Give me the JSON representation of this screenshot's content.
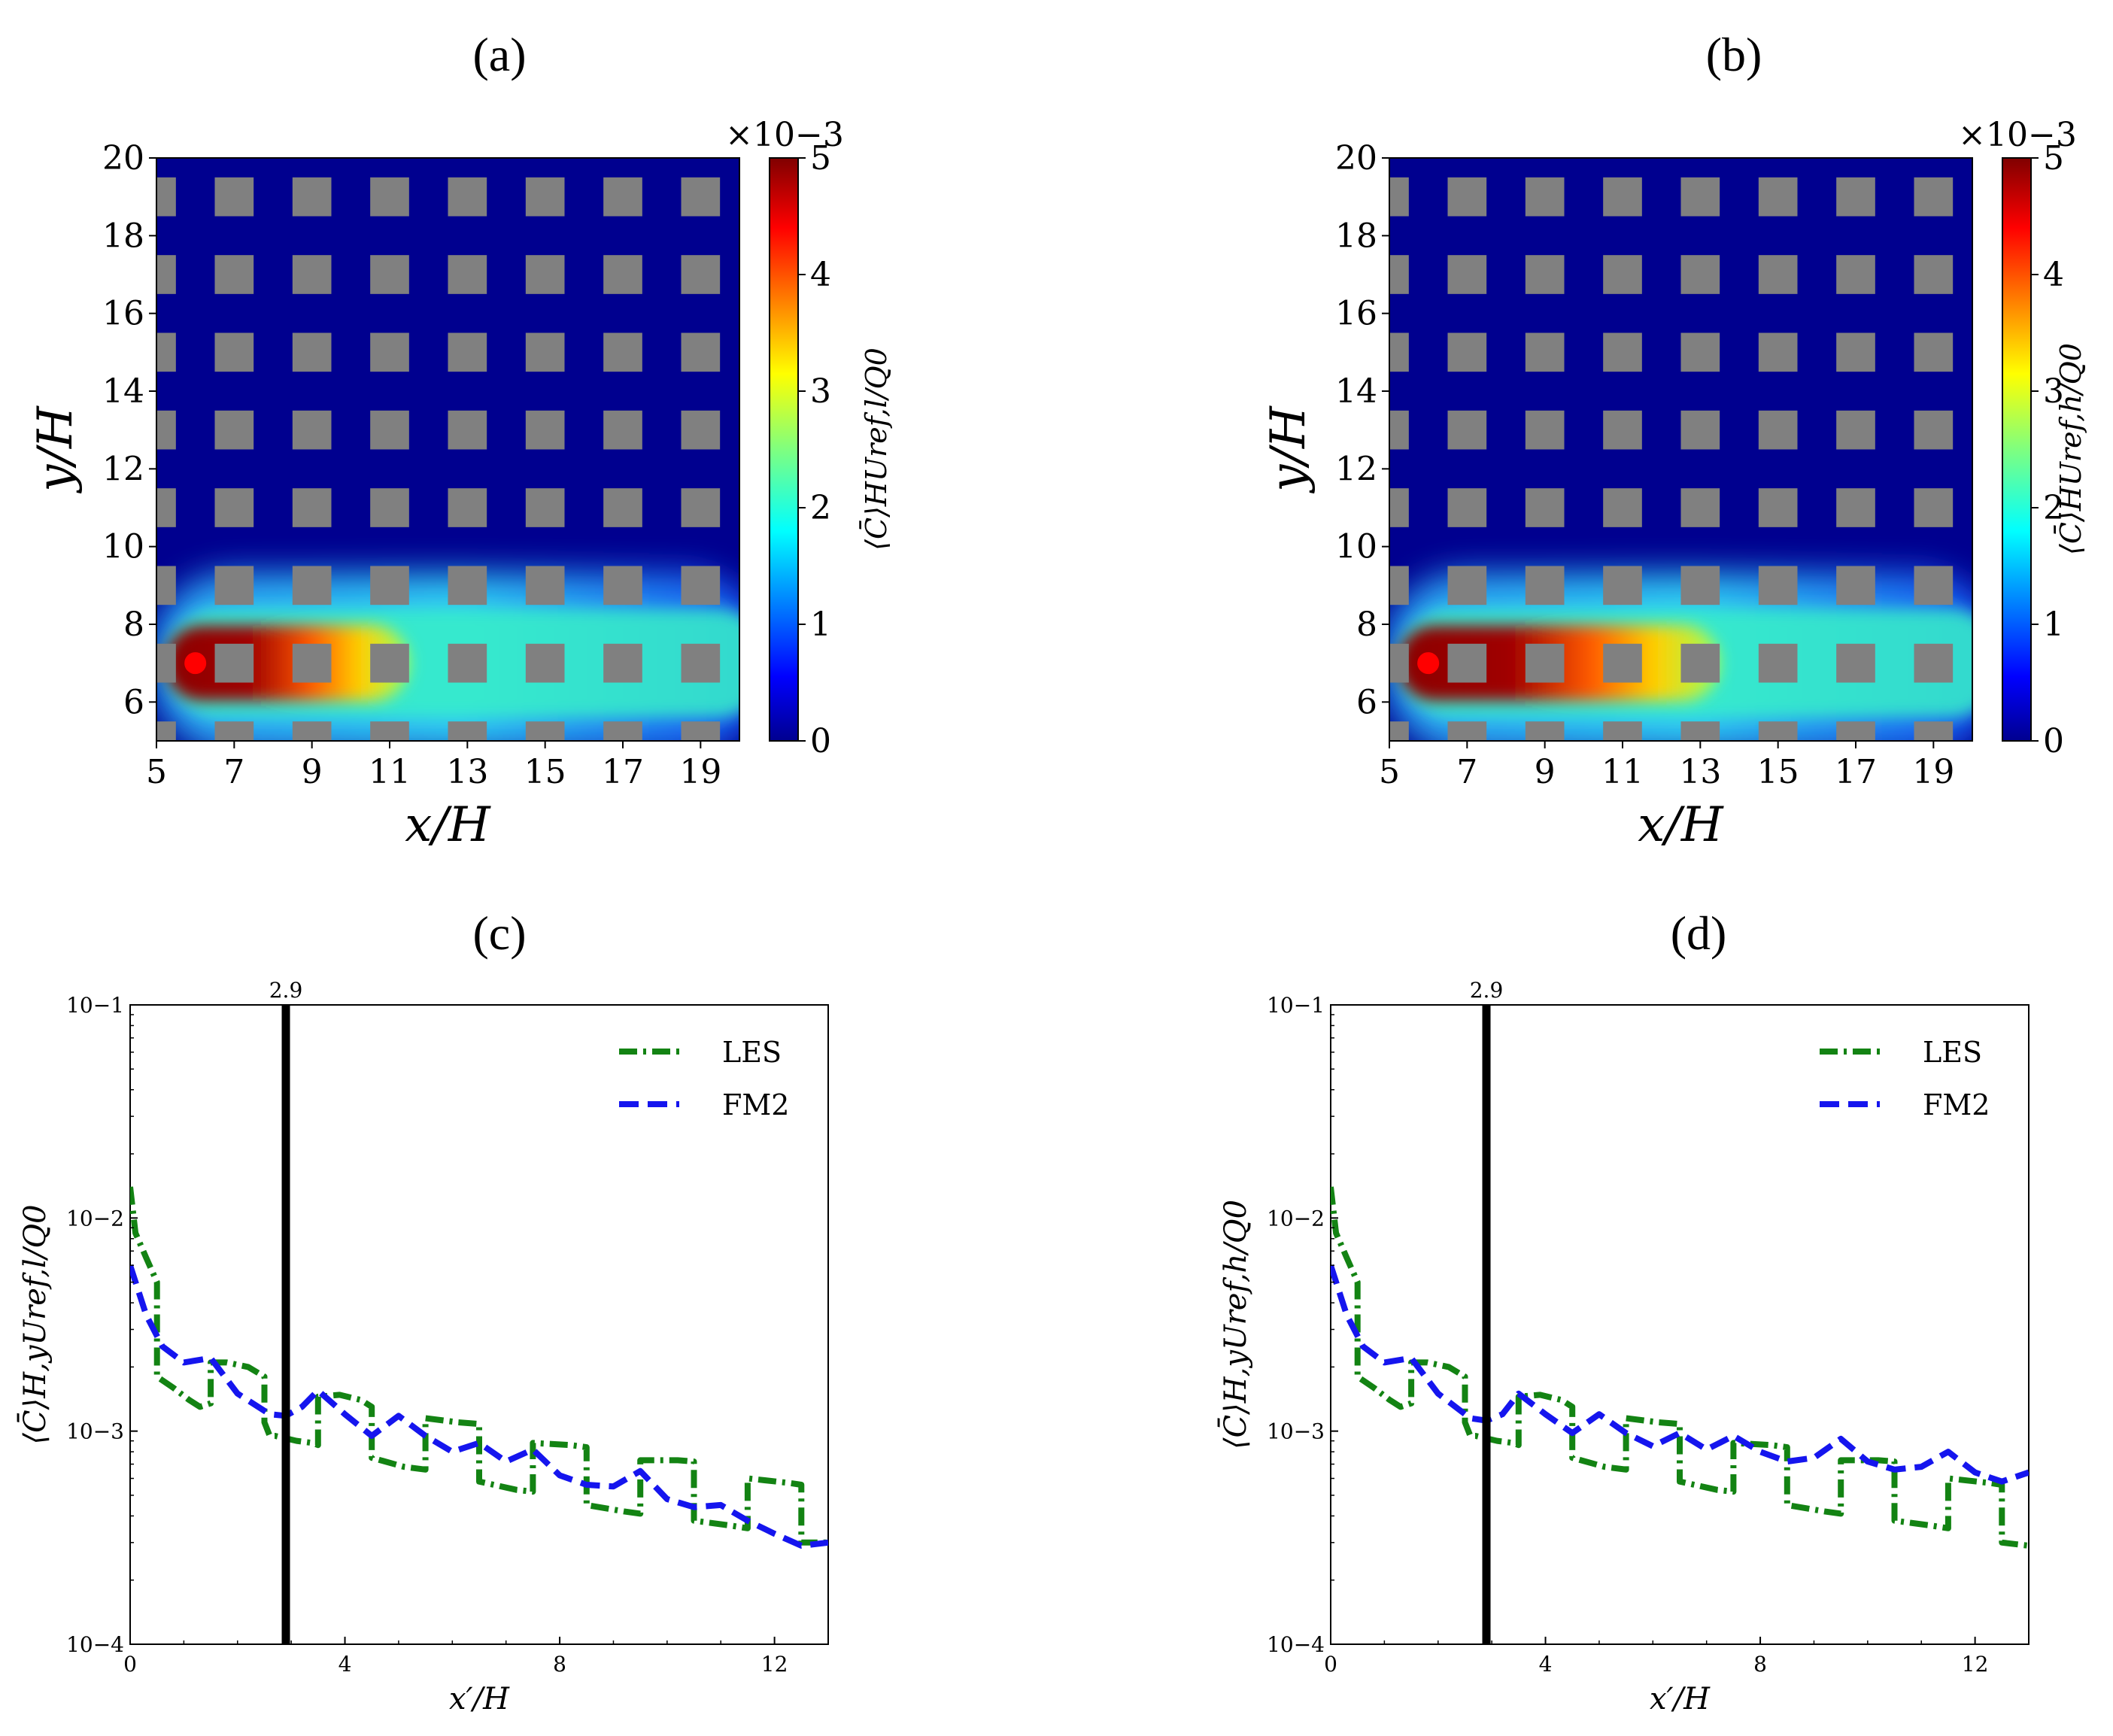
{
  "panels": [
    {
      "id": "a",
      "label": "(a)",
      "xlabel": "x/H",
      "ylabel": "y/H",
      "xticks": [
        "5",
        "7",
        "9",
        "11",
        "13",
        "15",
        "17",
        "19"
      ],
      "yticks": [
        "6",
        "8",
        "10",
        "12",
        "14",
        "16",
        "18",
        "20"
      ],
      "colorbar": {
        "label": "⟨C̄⟩HUref,l/Q0",
        "scale": "×10−3",
        "ticks": [
          "0",
          "1",
          "2",
          "3",
          "4",
          "5"
        ]
      },
      "plume_reach": 11.5
    },
    {
      "id": "b",
      "label": "(b)",
      "xlabel": "x/H",
      "ylabel": "y/H",
      "xticks": [
        "5",
        "7",
        "9",
        "11",
        "13",
        "15",
        "17",
        "19"
      ],
      "yticks": [
        "6",
        "8",
        "10",
        "12",
        "14",
        "16",
        "18",
        "20"
      ],
      "colorbar": {
        "label": "⟨C̄⟩HUref,h/Q0",
        "scale": "×10−3",
        "ticks": [
          "0",
          "1",
          "2",
          "3",
          "4",
          "5"
        ]
      },
      "plume_reach": 13.5
    },
    {
      "id": "c",
      "label": "(c)",
      "xlabel": "x′/H",
      "ylabel": "⟨C̄⟩H,yUref,l/Q0",
      "xticks": [
        "0",
        "4",
        "8",
        "12"
      ],
      "yticks": [
        "10−4",
        "10−3",
        "10−2",
        "10−1"
      ],
      "vline_label": "2.9",
      "legend": [
        "LES",
        "FM2"
      ]
    },
    {
      "id": "d",
      "label": "(d)",
      "xlabel": "x′/H",
      "ylabel": "⟨C̄⟩H,yUref,h/Q0",
      "xticks": [
        "0",
        "4",
        "8",
        "12"
      ],
      "yticks": [
        "10−4",
        "10−3",
        "10−2",
        "10−1"
      ],
      "vline_label": "2.9",
      "legend": [
        "LES",
        "FM2"
      ]
    }
  ],
  "colors": {
    "field_background": "#00008f",
    "obstacle": "#808080",
    "source": "#ff0000",
    "les": "#138313",
    "fm2": "#1515ee",
    "vline": "#000000"
  },
  "chart_data": [
    {
      "type": "heatmap",
      "panel": "a",
      "xlabel": "x/H",
      "ylabel": "y/H",
      "xlim": [
        5,
        20
      ],
      "ylim": [
        5,
        20
      ],
      "colorbar_range": [
        0,
        0.005
      ],
      "source": [
        6,
        7
      ],
      "obstacle_x": [
        5,
        7,
        9,
        11,
        13,
        15,
        17,
        19
      ],
      "obstacle_y": [
        5,
        7,
        9,
        11,
        13,
        15,
        17,
        19
      ]
    },
    {
      "type": "heatmap",
      "panel": "b",
      "xlabel": "x/H",
      "ylabel": "y/H",
      "xlim": [
        5,
        20
      ],
      "ylim": [
        5,
        20
      ],
      "colorbar_range": [
        0,
        0.005
      ],
      "source": [
        6,
        7
      ],
      "obstacle_x": [
        5,
        7,
        9,
        11,
        13,
        15,
        17,
        19
      ],
      "obstacle_y": [
        5,
        7,
        9,
        11,
        13,
        15,
        17,
        19
      ]
    },
    {
      "type": "line",
      "panel": "c",
      "xlabel": "x′/H",
      "ylabel": "⟨C̄⟩H,yUref,l/Q0",
      "xlim": [
        0,
        13
      ],
      "ylim": [
        0.0001,
        0.1
      ],
      "yscale": "log",
      "vline": 2.9,
      "series": [
        {
          "name": "LES",
          "x": [
            0,
            0.1,
            0.3,
            0.5,
            0.5,
            0.8,
            1.1,
            1.3,
            1.5,
            1.5,
            1.8,
            2.2,
            2.5,
            2.5,
            2.6,
            2.7,
            3.1,
            3.4,
            3.5,
            3.5,
            3.9,
            4.3,
            4.5,
            4.5,
            5.1,
            5.5,
            5.5,
            6.1,
            6.5,
            6.5,
            7.2,
            7.5,
            7.5,
            8.2,
            8.5,
            8.5,
            9.2,
            9.5,
            9.5,
            10.2,
            10.5,
            10.5,
            11.2,
            11.5,
            11.5,
            12.3,
            12.5,
            12.5,
            13
          ],
          "y": [
            0.014,
            0.0085,
            0.0065,
            0.005,
            0.0018,
            0.0016,
            0.0014,
            0.0013,
            0.00135,
            0.0021,
            0.0021,
            0.002,
            0.0018,
            0.0011,
            0.00095,
            0.00095,
            0.0009,
            0.00088,
            0.00086,
            0.00145,
            0.00148,
            0.0014,
            0.0013,
            0.00075,
            0.00068,
            0.00066,
            0.00115,
            0.0011,
            0.00108,
            0.00058,
            0.00053,
            0.00052,
            0.00088,
            0.00086,
            0.00084,
            0.00045,
            0.00042,
            0.00041,
            0.00073,
            0.00073,
            0.00072,
            0.00038,
            0.00036,
            0.00035,
            0.0006,
            0.00057,
            0.00056,
            0.0003,
            0.0003
          ]
        },
        {
          "name": "FM2",
          "x": [
            0,
            0.3,
            0.6,
            1,
            1.5,
            2,
            2.6,
            2.9,
            3.2,
            3.5,
            4,
            4.5,
            5,
            5.5,
            6,
            6.5,
            7,
            7.5,
            8,
            8.5,
            9,
            9.5,
            10,
            10.5,
            11,
            11.5,
            12,
            12.5,
            13
          ],
          "y": [
            0.006,
            0.0035,
            0.0025,
            0.0021,
            0.0022,
            0.0015,
            0.0012,
            0.00118,
            0.0013,
            0.00155,
            0.0012,
            0.00095,
            0.00118,
            0.00095,
            0.0008,
            0.00088,
            0.00072,
            0.00082,
            0.00062,
            0.00056,
            0.00055,
            0.00065,
            0.00048,
            0.00044,
            0.00045,
            0.00038,
            0.00033,
            0.00029,
            0.0003
          ]
        }
      ]
    },
    {
      "type": "line",
      "panel": "d",
      "xlabel": "x′/H",
      "ylabel": "⟨C̄⟩H,yUref,h/Q0",
      "xlim": [
        0,
        13
      ],
      "ylim": [
        0.0001,
        0.1
      ],
      "yscale": "log",
      "vline": 2.9,
      "series": [
        {
          "name": "LES",
          "x": [
            0,
            0.1,
            0.3,
            0.5,
            0.5,
            0.8,
            1.1,
            1.3,
            1.5,
            1.5,
            1.8,
            2.2,
            2.5,
            2.5,
            2.6,
            2.7,
            3.1,
            3.4,
            3.5,
            3.5,
            3.9,
            4.3,
            4.5,
            4.5,
            5.1,
            5.5,
            5.5,
            6.1,
            6.5,
            6.5,
            7.2,
            7.5,
            7.5,
            8.2,
            8.5,
            8.5,
            9.2,
            9.5,
            9.5,
            10.2,
            10.5,
            10.5,
            11.2,
            11.5,
            11.5,
            12.3,
            12.5,
            12.5,
            13
          ],
          "y": [
            0.014,
            0.0085,
            0.0065,
            0.005,
            0.0018,
            0.0016,
            0.0014,
            0.0013,
            0.00135,
            0.0021,
            0.0021,
            0.002,
            0.0018,
            0.0011,
            0.00095,
            0.00095,
            0.0009,
            0.00088,
            0.00086,
            0.00145,
            0.00148,
            0.0014,
            0.0013,
            0.00075,
            0.00068,
            0.00066,
            0.00115,
            0.0011,
            0.00108,
            0.00058,
            0.00053,
            0.00052,
            0.00088,
            0.00086,
            0.00084,
            0.00045,
            0.00042,
            0.00041,
            0.00073,
            0.00073,
            0.00072,
            0.00038,
            0.00036,
            0.00035,
            0.0006,
            0.00057,
            0.00056,
            0.0003,
            0.00029
          ]
        },
        {
          "name": "FM2",
          "x": [
            0,
            0.3,
            0.6,
            1,
            1.5,
            2,
            2.6,
            2.9,
            3.2,
            3.5,
            4,
            4.5,
            5,
            5.5,
            6,
            6.5,
            7,
            7.5,
            8,
            8.5,
            9,
            9.5,
            10,
            10.5,
            11,
            11.5,
            12,
            12.5,
            13
          ],
          "y": [
            0.006,
            0.0035,
            0.0025,
            0.0021,
            0.0022,
            0.0015,
            0.00115,
            0.00112,
            0.0012,
            0.0015,
            0.0012,
            0.00098,
            0.0012,
            0.00098,
            0.00085,
            0.00098,
            0.00082,
            0.00095,
            0.0008,
            0.00072,
            0.00075,
            0.00092,
            0.00072,
            0.00066,
            0.00068,
            0.0008,
            0.00064,
            0.00058,
            0.00064
          ]
        }
      ]
    }
  ]
}
